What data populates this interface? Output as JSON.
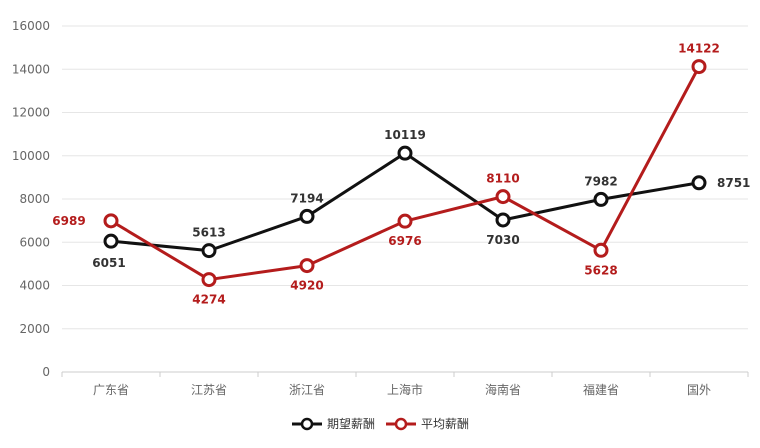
{
  "chart_data": {
    "type": "line",
    "categories": [
      "广东省",
      "江苏省",
      "浙江省",
      "上海市",
      "海南省",
      "福建省",
      "国外"
    ],
    "series": [
      {
        "name": "期望薪酬",
        "color": "#111111",
        "values": [
          6051,
          5613,
          7194,
          10119,
          7030,
          7982,
          8751
        ]
      },
      {
        "name": "平均薪酬",
        "color": "#b41c1c",
        "values": [
          6989,
          4274,
          4920,
          6976,
          8110,
          5628,
          14122
        ]
      }
    ],
    "ylim": [
      0,
      16000
    ],
    "yticks": [
      0,
      2000,
      4000,
      6000,
      8000,
      10000,
      12000,
      14000,
      16000
    ],
    "grid": true,
    "legend_position": "bottom-center",
    "title": "",
    "xlabel": "",
    "ylabel": ""
  }
}
